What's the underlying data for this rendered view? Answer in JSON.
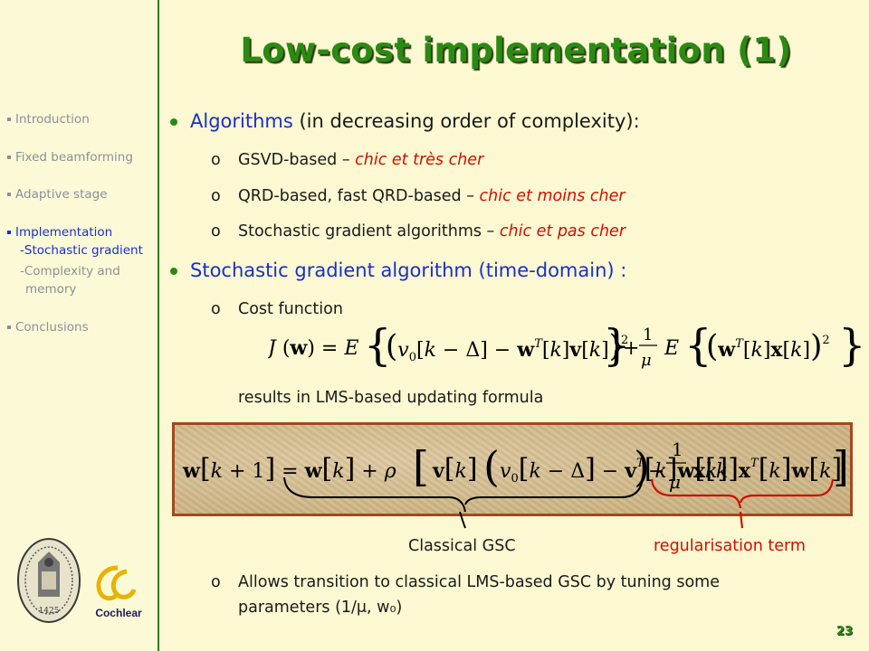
{
  "slide": {
    "title": "Low-cost implementation (1)",
    "page_number": "23"
  },
  "sidebar": {
    "items": [
      {
        "label": "Introduction",
        "active": false
      },
      {
        "label": "Fixed beamforming",
        "active": false
      },
      {
        "label": "Adaptive stage",
        "active": false
      },
      {
        "label": "Implementation",
        "active": true
      },
      {
        "label": "Conclusions",
        "active": false
      }
    ],
    "subitems": [
      {
        "label": "-Stochastic gradient",
        "active": true
      },
      {
        "label": "-Complexity  and",
        "active": false
      },
      {
        "label": "memory",
        "active": false
      }
    ]
  },
  "content": {
    "bullet1": {
      "main": "Algorithms",
      "suffix": " (in decreasing order of complexity):"
    },
    "sub1": [
      {
        "text": "GSVD-based – ",
        "red": "chic et très cher"
      },
      {
        "text": "QRD-based, fast QRD-based – ",
        "red": "chic et moins cher"
      },
      {
        "text": "Stochastic gradient algorithms – ",
        "red": "chic et pas cher"
      }
    ],
    "bullet2": {
      "main": "Stochastic gradient algorithm (time-domain) :"
    },
    "sub2_cost": "Cost function",
    "results_text": "results in LMS-based updating formula",
    "brace_labels": {
      "left": "Classical GSC",
      "right": "regularisation term"
    },
    "transition_line1": "Allows transition to classical LMS-based GSC by tuning some",
    "transition_line2": "parameters (1/μ, w₀)",
    "sub_marker": "o"
  },
  "logos": {
    "left": "ku-leuven-seal-icon",
    "right": "cochlear-logo-icon",
    "right_text": "Cochlear",
    "seal_year": "1425"
  },
  "colors": {
    "accent_green": "#2b8a12",
    "blue": "#1a2fc8",
    "red": "#cc1100",
    "box_border": "#a14a1c"
  }
}
